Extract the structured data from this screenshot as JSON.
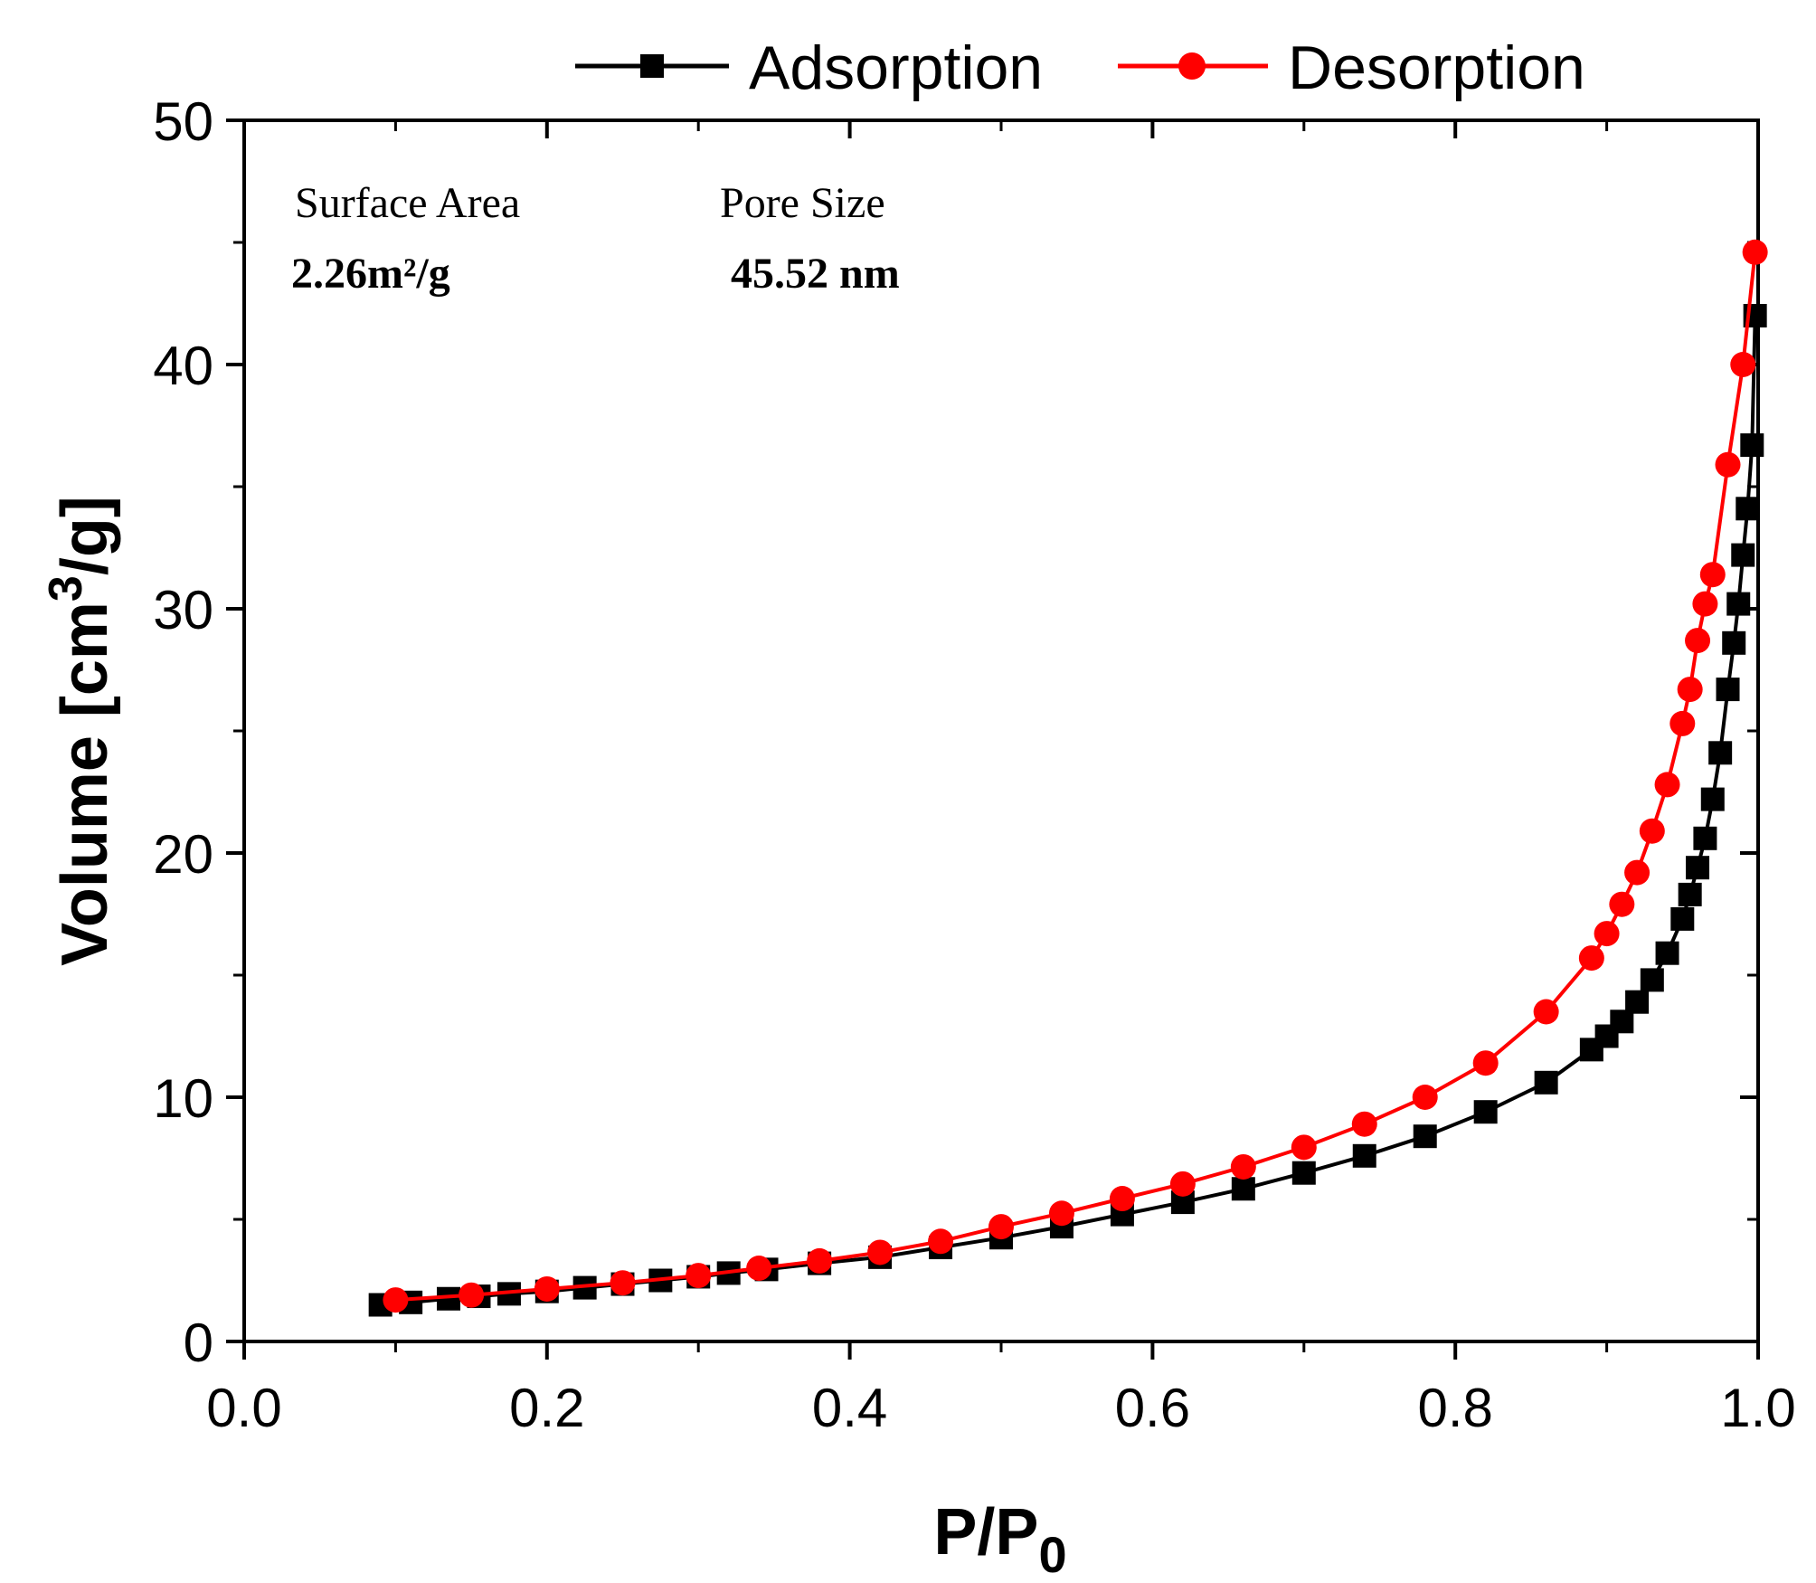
{
  "chart_data": {
    "type": "line",
    "xlabel_main": "P/P",
    "xlabel_sub": "0",
    "ylabel_main": "Volume [cm",
    "ylabel_sup": "3",
    "ylabel_tail": "/g]",
    "xlim": [
      0.0,
      1.0
    ],
    "ylim": [
      0,
      50
    ],
    "x_ticks": [
      "0.0",
      "0.2",
      "0.4",
      "0.6",
      "0.8",
      "1.0"
    ],
    "y_ticks": [
      "0",
      "10",
      "20",
      "30",
      "40",
      "50"
    ],
    "legend_position": "top",
    "annotations": {
      "surface_area_label": "Surface Area",
      "surface_area_value": "2.26m²/g",
      "pore_size_label": "Pore Size",
      "pore_size_value": "45.52 nm"
    },
    "series": [
      {
        "name": "Adsorption",
        "color": "#000000",
        "marker": "square",
        "x": [
          0.09,
          0.11,
          0.135,
          0.155,
          0.175,
          0.2,
          0.225,
          0.25,
          0.275,
          0.3,
          0.32,
          0.345,
          0.38,
          0.42,
          0.46,
          0.5,
          0.54,
          0.58,
          0.62,
          0.66,
          0.7,
          0.74,
          0.78,
          0.82,
          0.86,
          0.89,
          0.9,
          0.91,
          0.92,
          0.93,
          0.94,
          0.95,
          0.955,
          0.96,
          0.965,
          0.97,
          0.975,
          0.98,
          0.984,
          0.987,
          0.99,
          0.993,
          0.996,
          0.998
        ],
        "y": [
          1.5,
          1.6,
          1.75,
          1.85,
          1.95,
          2.05,
          2.2,
          2.35,
          2.5,
          2.65,
          2.8,
          2.95,
          3.2,
          3.45,
          3.85,
          4.25,
          4.7,
          5.2,
          5.7,
          6.25,
          6.9,
          7.6,
          8.4,
          9.4,
          10.6,
          11.95,
          12.5,
          13.1,
          13.9,
          14.8,
          15.9,
          17.3,
          18.3,
          19.4,
          20.6,
          22.2,
          24.1,
          26.7,
          28.6,
          30.2,
          32.2,
          34.1,
          36.7,
          42.0
        ]
      },
      {
        "name": "Desorption",
        "color": "#ff0000",
        "marker": "circle",
        "x": [
          0.1,
          0.15,
          0.2,
          0.25,
          0.3,
          0.34,
          0.38,
          0.42,
          0.46,
          0.5,
          0.54,
          0.58,
          0.62,
          0.66,
          0.7,
          0.74,
          0.78,
          0.82,
          0.86,
          0.89,
          0.9,
          0.91,
          0.92,
          0.93,
          0.94,
          0.95,
          0.955,
          0.96,
          0.965,
          0.97,
          0.98,
          0.99,
          0.998
        ],
        "y": [
          1.7,
          1.9,
          2.15,
          2.4,
          2.7,
          3.0,
          3.3,
          3.65,
          4.1,
          4.7,
          5.25,
          5.85,
          6.45,
          7.15,
          7.95,
          8.9,
          10.0,
          11.4,
          13.5,
          15.7,
          16.7,
          17.9,
          19.2,
          20.9,
          22.8,
          25.3,
          26.7,
          28.7,
          30.2,
          31.4,
          35.9,
          40.0,
          44.6
        ]
      }
    ]
  }
}
